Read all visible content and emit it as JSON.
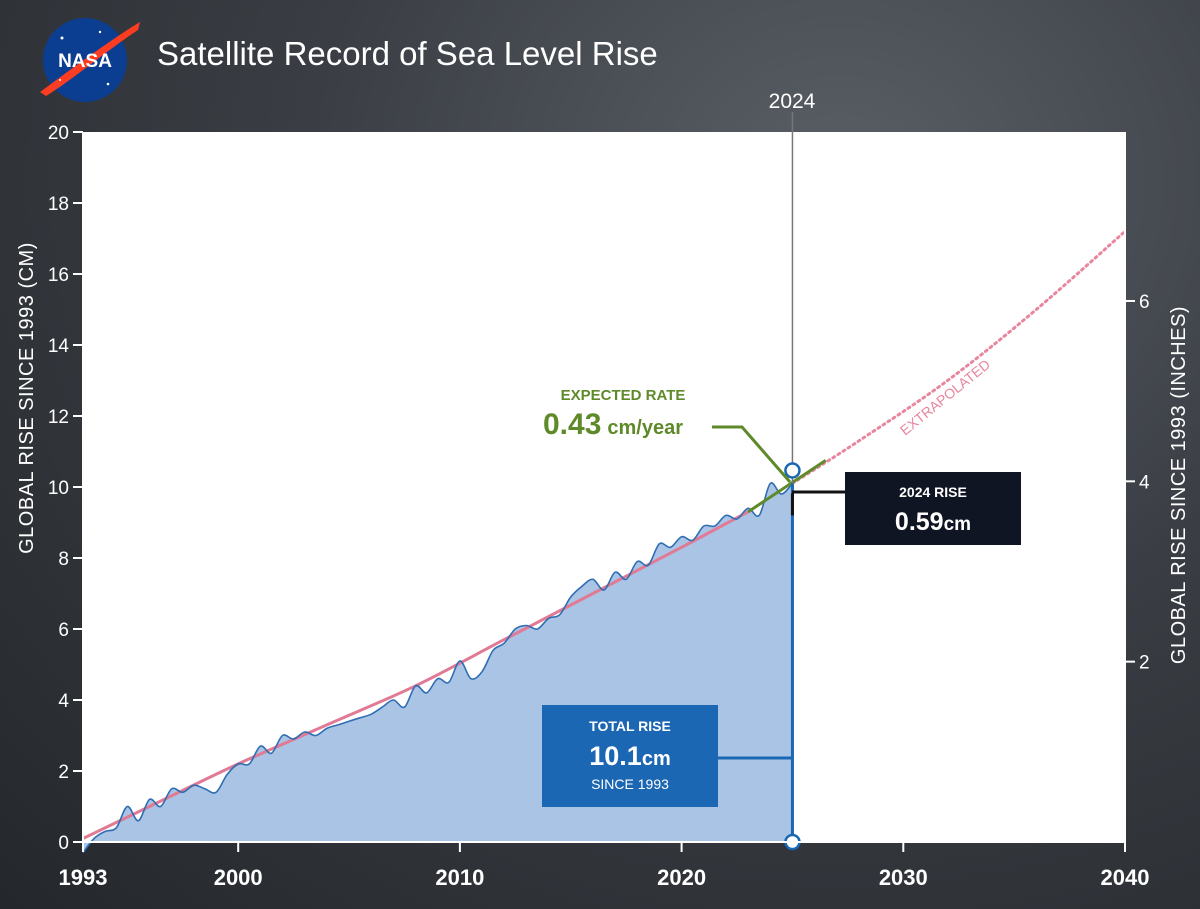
{
  "logo": {
    "text": "NASA"
  },
  "chart_data": {
    "type": "area",
    "title": "Satellite Record of Sea Level Rise",
    "ylabel": "GLOBAL RISE SINCE 1993 (CM)",
    "ylabel_right": "GLOBAL RISE SINCE 1993 (INCHES)",
    "xlim": [
      1993,
      2040
    ],
    "ylim": [
      0,
      20
    ],
    "ylim_right_inches": [
      0,
      7.874
    ],
    "x_ticks": [
      1993,
      2000,
      2010,
      2020,
      2030,
      2040
    ],
    "y_ticks": [
      0,
      2,
      4,
      6,
      8,
      10,
      12,
      14,
      16,
      18,
      20
    ],
    "y_ticks_right": [
      2,
      4,
      6
    ],
    "grid": false,
    "marker_year_label": "2024",
    "marker_year": 2025.0,
    "series": [
      {
        "kind": "observed",
        "color": "#2f6eb3",
        "fill": "#a9c4e4",
        "x": [
          1993.0,
          1993.5,
          1994.0,
          1994.5,
          1995.0,
          1995.5,
          1996.0,
          1996.5,
          1997.0,
          1997.5,
          1998.0,
          1998.5,
          1999.0,
          1999.5,
          2000.0,
          2000.5,
          2001.0,
          2001.5,
          2002.0,
          2002.5,
          2003.0,
          2003.5,
          2004.0,
          2004.5,
          2005.0,
          2005.5,
          2006.0,
          2006.5,
          2007.0,
          2007.5,
          2008.0,
          2008.5,
          2009.0,
          2009.5,
          2010.0,
          2010.5,
          2011.0,
          2011.5,
          2012.0,
          2012.5,
          2013.0,
          2013.5,
          2014.0,
          2014.5,
          2015.0,
          2015.5,
          2016.0,
          2016.5,
          2017.0,
          2017.5,
          2018.0,
          2018.5,
          2019.0,
          2019.5,
          2020.0,
          2020.5,
          2021.0,
          2021.5,
          2022.0,
          2022.5,
          2023.0,
          2023.5,
          2024.0,
          2024.5,
          2025.0
        ],
        "values": [
          -0.3,
          0.1,
          0.3,
          0.4,
          1.0,
          0.6,
          1.2,
          1.0,
          1.5,
          1.4,
          1.6,
          1.5,
          1.4,
          1.9,
          2.2,
          2.2,
          2.7,
          2.5,
          3.0,
          2.9,
          3.1,
          3.0,
          3.2,
          3.3,
          3.4,
          3.5,
          3.6,
          3.8,
          4.0,
          3.8,
          4.4,
          4.2,
          4.6,
          4.5,
          5.1,
          4.6,
          4.8,
          5.4,
          5.6,
          6.0,
          6.1,
          6.0,
          6.3,
          6.4,
          6.9,
          7.2,
          7.4,
          7.1,
          7.6,
          7.4,
          7.9,
          7.8,
          8.4,
          8.3,
          8.6,
          8.5,
          8.9,
          8.9,
          9.2,
          9.1,
          9.4,
          9.2,
          10.1,
          9.8,
          10.1
        ]
      },
      {
        "kind": "trend",
        "color": "#e07a95",
        "x": [
          1993,
          1996,
          2000,
          2004,
          2008,
          2012,
          2016,
          2020,
          2023
        ],
        "values": [
          0.1,
          1.0,
          2.2,
          3.3,
          4.4,
          5.7,
          7.0,
          8.3,
          9.3
        ]
      },
      {
        "kind": "extrapolated",
        "color": "#e8869e",
        "x": [
          2025.0,
          2028,
          2032,
          2036,
          2040
        ],
        "values": [
          10.1,
          11.3,
          13.0,
          15.0,
          17.2
        ]
      },
      {
        "kind": "expected-rate",
        "color": "#5f8a2a",
        "x": [
          2023.0,
          2026.5
        ],
        "values": [
          9.3,
          10.75
        ]
      }
    ],
    "annotations": {
      "expected_rate": {
        "label": "EXPECTED RATE",
        "value": "0.43",
        "unit": "cm/year"
      },
      "extrapolated": {
        "label": "EXTRAPOLATED"
      },
      "rise_2024": {
        "label": "2024 RISE",
        "value": "0.59",
        "unit": "cm"
      },
      "total_rise": {
        "label": "TOTAL RISE",
        "value": "10.1",
        "unit": "cm",
        "sub": "SINCE 1993"
      }
    }
  }
}
